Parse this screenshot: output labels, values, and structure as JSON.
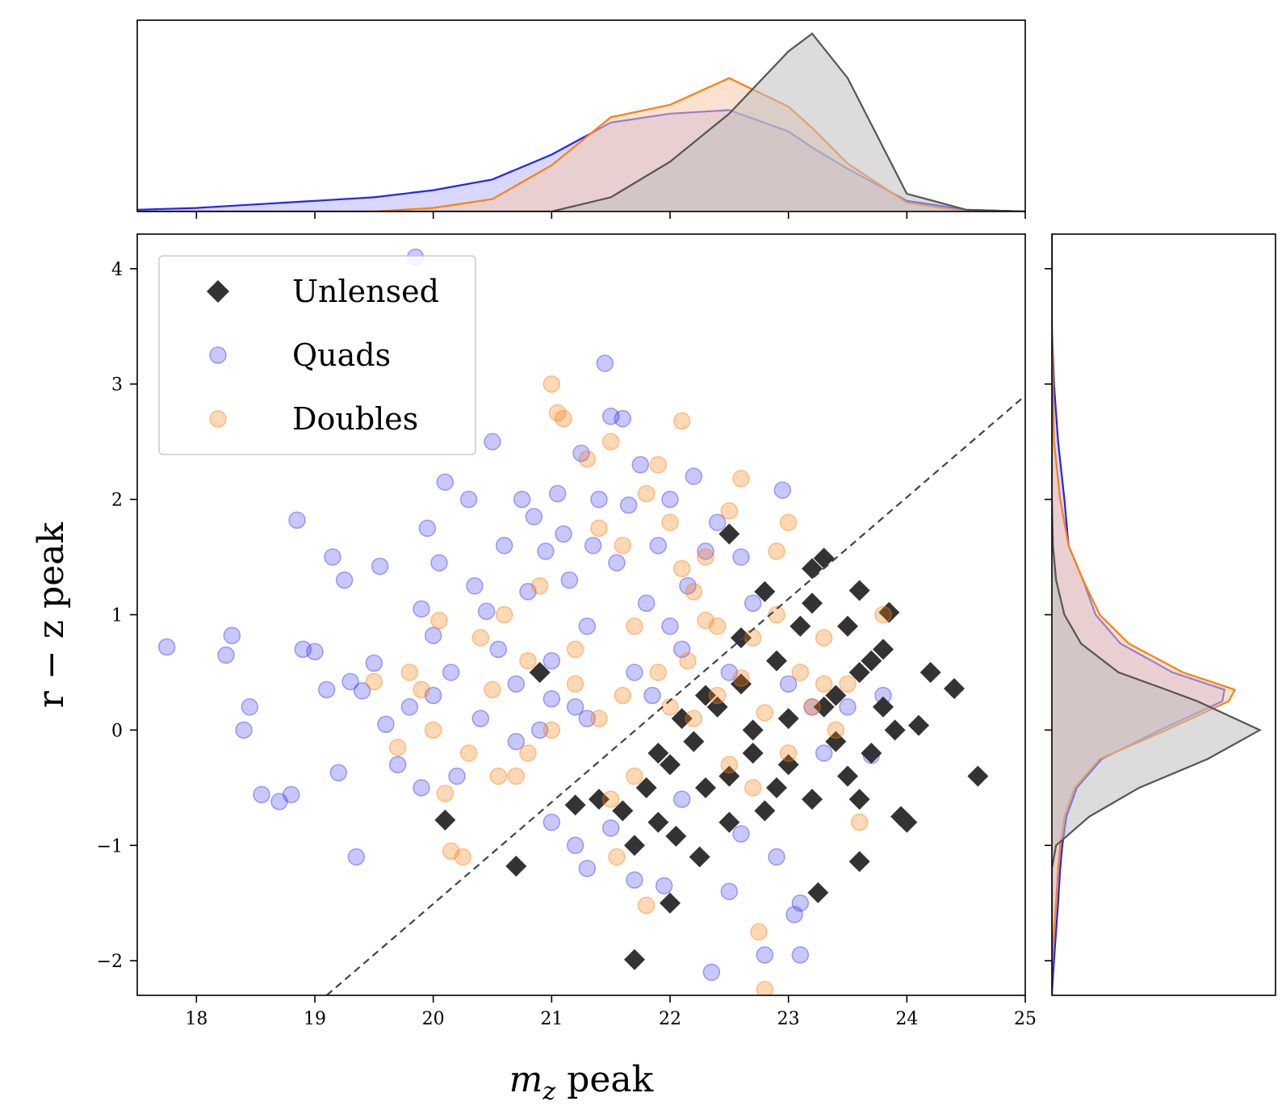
{
  "chart_data": {
    "type": "scatter",
    "xlabel_base": "m",
    "xlabel_sub": "z",
    "xlabel_rest": " peak",
    "ylabel": "r − z peak",
    "xlim": [
      17.5,
      25
    ],
    "ylim": [
      -2.3,
      4.3
    ],
    "xticks": [
      18,
      19,
      20,
      21,
      22,
      23,
      24,
      25
    ],
    "yticks": [
      -2,
      -1,
      0,
      1,
      2,
      3,
      4
    ],
    "grid": false,
    "legend_position": "upper-left",
    "reference_line": {
      "style": "dashed",
      "color": "#444444",
      "points": [
        [
          19.1,
          -2.3
        ],
        [
          25,
          2.9
        ]
      ]
    },
    "colors": {
      "unlensed": "#333333",
      "quads": "#2222ff",
      "doubles": "#ff7f0e"
    },
    "series": [
      {
        "key": "unlensed",
        "name": "Unlensed",
        "marker": "diamond",
        "color": "#333333",
        "opacity": 1.0,
        "points": [
          [
            20.1,
            -0.78
          ],
          [
            20.7,
            -1.18
          ],
          [
            21.7,
            -1.0
          ],
          [
            21.7,
            -1.99
          ],
          [
            22.0,
            -1.5
          ],
          [
            22.05,
            -0.92
          ],
          [
            22.25,
            -1.1
          ],
          [
            23.25,
            -1.41
          ],
          [
            23.6,
            -1.14
          ],
          [
            23.95,
            -0.75
          ],
          [
            24.0,
            -0.8
          ],
          [
            24.4,
            0.36
          ],
          [
            24.6,
            -0.4
          ],
          [
            24.1,
            0.04
          ],
          [
            23.85,
            1.02
          ],
          [
            23.6,
            1.21
          ],
          [
            23.3,
            1.49
          ],
          [
            23.2,
            1.4
          ],
          [
            22.5,
            1.7
          ],
          [
            20.9,
            0.5
          ],
          [
            22.3,
            -0.5
          ],
          [
            22.7,
            -0.2
          ],
          [
            23.0,
            0.1
          ],
          [
            23.4,
            0.3
          ],
          [
            23.6,
            0.5
          ],
          [
            23.8,
            0.7
          ],
          [
            23.1,
            0.9
          ],
          [
            22.9,
            0.6
          ],
          [
            22.6,
            0.4
          ],
          [
            22.4,
            0.2
          ],
          [
            22.2,
            -0.1
          ],
          [
            22.0,
            -0.3
          ],
          [
            21.8,
            -0.5
          ],
          [
            21.6,
            -0.7
          ],
          [
            21.9,
            -0.8
          ],
          [
            22.5,
            -0.8
          ],
          [
            22.8,
            -0.7
          ],
          [
            23.2,
            -0.6
          ],
          [
            23.5,
            -0.4
          ],
          [
            23.7,
            -0.2
          ],
          [
            23.9,
            0.0
          ],
          [
            23.3,
            0.2
          ],
          [
            23.0,
            -0.3
          ],
          [
            22.7,
            0.0
          ],
          [
            22.9,
            -0.5
          ],
          [
            23.6,
            -0.6
          ],
          [
            23.8,
            0.2
          ],
          [
            23.5,
            0.9
          ],
          [
            23.2,
            1.1
          ],
          [
            22.8,
            1.2
          ],
          [
            22.6,
            0.8
          ],
          [
            22.3,
            0.3
          ],
          [
            22.1,
            0.1
          ],
          [
            21.9,
            -0.2
          ],
          [
            21.4,
            -0.6
          ],
          [
            21.2,
            -0.65
          ],
          [
            23.4,
            -0.1
          ],
          [
            23.7,
            0.6
          ],
          [
            22.5,
            -0.4
          ],
          [
            24.2,
            0.5
          ]
        ]
      },
      {
        "key": "quads",
        "name": "Quads",
        "marker": "circle",
        "color": "#2222ff",
        "opacity": 0.25,
        "points": [
          [
            17.75,
            0.72
          ],
          [
            18.25,
            0.65
          ],
          [
            18.3,
            0.82
          ],
          [
            18.4,
            0.0
          ],
          [
            18.45,
            0.2
          ],
          [
            18.55,
            -0.56
          ],
          [
            18.7,
            -0.62
          ],
          [
            18.8,
            -0.56
          ],
          [
            18.85,
            1.82
          ],
          [
            18.9,
            0.7
          ],
          [
            19.0,
            0.68
          ],
          [
            19.1,
            0.35
          ],
          [
            19.15,
            1.5
          ],
          [
            19.2,
            -0.37
          ],
          [
            19.25,
            1.3
          ],
          [
            19.3,
            0.42
          ],
          [
            19.35,
            -1.1
          ],
          [
            19.4,
            0.34
          ],
          [
            19.5,
            0.58
          ],
          [
            19.55,
            1.42
          ],
          [
            19.6,
            0.05
          ],
          [
            19.7,
            -0.3
          ],
          [
            19.8,
            0.2
          ],
          [
            19.85,
            4.1
          ],
          [
            19.9,
            1.05
          ],
          [
            19.95,
            1.75
          ],
          [
            20.0,
            0.82
          ],
          [
            20.05,
            1.45
          ],
          [
            20.1,
            2.15
          ],
          [
            20.15,
            0.5
          ],
          [
            20.2,
            -0.4
          ],
          [
            20.3,
            2.0
          ],
          [
            20.35,
            1.25
          ],
          [
            20.4,
            0.1
          ],
          [
            20.45,
            1.03
          ],
          [
            20.5,
            2.5
          ],
          [
            20.55,
            0.7
          ],
          [
            20.6,
            1.6
          ],
          [
            20.7,
            0.4
          ],
          [
            20.75,
            2.0
          ],
          [
            20.8,
            1.2
          ],
          [
            20.85,
            1.85
          ],
          [
            20.9,
            0.0
          ],
          [
            20.95,
            1.55
          ],
          [
            21.0,
            0.6
          ],
          [
            21.05,
            2.05
          ],
          [
            21.1,
            1.7
          ],
          [
            21.15,
            1.3
          ],
          [
            21.2,
            0.2
          ],
          [
            21.25,
            2.4
          ],
          [
            21.3,
            0.9
          ],
          [
            21.35,
            1.6
          ],
          [
            21.4,
            2.0
          ],
          [
            21.45,
            3.18
          ],
          [
            21.5,
            2.72
          ],
          [
            21.55,
            1.45
          ],
          [
            21.6,
            2.7
          ],
          [
            21.65,
            1.95
          ],
          [
            21.7,
            0.5
          ],
          [
            21.75,
            2.3
          ],
          [
            21.8,
            1.1
          ],
          [
            21.85,
            0.3
          ],
          [
            21.9,
            1.6
          ],
          [
            21.95,
            -1.35
          ],
          [
            22.0,
            2.0
          ],
          [
            22.1,
            0.7
          ],
          [
            22.15,
            1.25
          ],
          [
            22.2,
            2.2
          ],
          [
            22.3,
            1.55
          ],
          [
            22.35,
            -2.1
          ],
          [
            22.4,
            1.8
          ],
          [
            22.5,
            0.5
          ],
          [
            22.6,
            1.5
          ],
          [
            22.7,
            1.1
          ],
          [
            22.8,
            -1.95
          ],
          [
            22.9,
            -1.1
          ],
          [
            22.95,
            2.08
          ],
          [
            23.0,
            0.4
          ],
          [
            23.05,
            -1.6
          ],
          [
            23.1,
            -1.5
          ],
          [
            23.1,
            -1.95
          ],
          [
            23.2,
            0.2
          ],
          [
            23.3,
            -0.2
          ],
          [
            23.5,
            0.2
          ],
          [
            23.7,
            -0.22
          ],
          [
            23.8,
            0.3
          ],
          [
            21.0,
            -0.8
          ],
          [
            21.5,
            -0.85
          ],
          [
            21.7,
            -1.3
          ],
          [
            22.1,
            -0.6
          ],
          [
            22.6,
            -0.9
          ],
          [
            21.0,
            0.27
          ],
          [
            21.3,
            0.1
          ],
          [
            20.7,
            -0.1
          ],
          [
            20.0,
            0.3
          ],
          [
            19.9,
            -0.5
          ],
          [
            22.0,
            0.9
          ],
          [
            21.2,
            -1.0
          ],
          [
            21.3,
            -1.2
          ],
          [
            22.5,
            -1.4
          ]
        ]
      },
      {
        "key": "doubles",
        "name": "Doubles",
        "marker": "circle",
        "color": "#ff7f0e",
        "opacity": 0.3,
        "points": [
          [
            19.5,
            0.42
          ],
          [
            19.7,
            -0.15
          ],
          [
            19.8,
            0.5
          ],
          [
            19.9,
            0.35
          ],
          [
            20.0,
            0.0
          ],
          [
            20.05,
            0.95
          ],
          [
            20.1,
            -0.55
          ],
          [
            20.15,
            -1.05
          ],
          [
            20.25,
            -1.1
          ],
          [
            20.3,
            -0.2
          ],
          [
            20.4,
            0.8
          ],
          [
            20.5,
            0.35
          ],
          [
            20.55,
            -0.4
          ],
          [
            20.6,
            1.0
          ],
          [
            20.7,
            -0.4
          ],
          [
            20.8,
            0.6
          ],
          [
            20.9,
            1.25
          ],
          [
            21.0,
            3.0
          ],
          [
            21.05,
            2.75
          ],
          [
            21.1,
            2.7
          ],
          [
            21.2,
            0.4
          ],
          [
            21.3,
            2.35
          ],
          [
            21.4,
            1.75
          ],
          [
            21.5,
            2.5
          ],
          [
            21.55,
            -1.1
          ],
          [
            21.6,
            1.6
          ],
          [
            21.7,
            0.9
          ],
          [
            21.8,
            2.05
          ],
          [
            21.9,
            2.3
          ],
          [
            22.0,
            1.8
          ],
          [
            22.1,
            2.68
          ],
          [
            22.15,
            0.6
          ],
          [
            22.2,
            1.2
          ],
          [
            22.3,
            1.5
          ],
          [
            22.4,
            0.3
          ],
          [
            22.5,
            1.9
          ],
          [
            22.6,
            2.18
          ],
          [
            22.7,
            0.8
          ],
          [
            22.75,
            -1.75
          ],
          [
            22.8,
            -2.25
          ],
          [
            22.9,
            1.0
          ],
          [
            23.0,
            1.8
          ],
          [
            23.1,
            0.5
          ],
          [
            23.2,
            0.2
          ],
          [
            23.3,
            0.8
          ],
          [
            23.4,
            0.0
          ],
          [
            23.5,
            0.4
          ],
          [
            23.6,
            -0.8
          ],
          [
            21.8,
            -1.52
          ],
          [
            22.0,
            0.2
          ],
          [
            21.9,
            0.5
          ],
          [
            22.2,
            0.1
          ],
          [
            22.4,
            0.9
          ],
          [
            22.6,
            0.45
          ],
          [
            22.8,
            0.15
          ],
          [
            21.6,
            0.3
          ],
          [
            21.4,
            0.1
          ],
          [
            21.2,
            0.7
          ],
          [
            21.0,
            0.0
          ],
          [
            22.5,
            -0.3
          ],
          [
            22.7,
            -0.5
          ],
          [
            23.0,
            -0.2
          ],
          [
            21.7,
            -0.4
          ],
          [
            21.5,
            -0.6
          ],
          [
            22.1,
            1.4
          ],
          [
            22.3,
            0.95
          ],
          [
            22.9,
            1.55
          ],
          [
            23.3,
            0.4
          ],
          [
            20.8,
            -0.2
          ],
          [
            23.8,
            1.0
          ]
        ]
      }
    ],
    "marginal_top": {
      "x": [
        17.5,
        18.0,
        18.5,
        19.0,
        19.5,
        20.0,
        20.5,
        21.0,
        21.5,
        22.0,
        22.5,
        23.0,
        23.2,
        23.5,
        24.0,
        24.5,
        25.0
      ],
      "series": [
        {
          "key": "quads",
          "color": "#2222ff",
          "fill": "#b8b8ff",
          "density": [
            0.01,
            0.02,
            0.04,
            0.06,
            0.08,
            0.12,
            0.18,
            0.32,
            0.5,
            0.55,
            0.57,
            0.45,
            0.36,
            0.24,
            0.06,
            0.01,
            0.0
          ]
        },
        {
          "key": "doubles",
          "color": "#ff7f0e",
          "fill": "#f7c9a8",
          "density": [
            0.0,
            0.0,
            0.0,
            0.0,
            0.0,
            0.02,
            0.07,
            0.26,
            0.53,
            0.6,
            0.75,
            0.59,
            0.47,
            0.27,
            0.05,
            0.0,
            0.0
          ]
        },
        {
          "key": "unlensed",
          "color": "#555555",
          "fill": "#bfbfbf",
          "density": [
            0.0,
            0.0,
            0.0,
            0.0,
            0.0,
            0.0,
            0.0,
            0.0,
            0.08,
            0.28,
            0.55,
            0.9,
            1.0,
            0.75,
            0.1,
            0.01,
            0.0
          ]
        }
      ]
    },
    "marginal_right": {
      "y": [
        -2.3,
        -2.0,
        -1.5,
        -1.2,
        -1.0,
        -0.75,
        -0.5,
        -0.25,
        0.0,
        0.25,
        0.35,
        0.5,
        0.75,
        1.0,
        1.3,
        1.6,
        2.0,
        2.5,
        3.0,
        3.5,
        4.3
      ],
      "series": [
        {
          "key": "quads",
          "color": "#2222ff",
          "fill": "#b8b8ff",
          "density": [
            0.0,
            0.01,
            0.03,
            0.04,
            0.05,
            0.07,
            0.12,
            0.24,
            0.52,
            0.82,
            0.83,
            0.58,
            0.33,
            0.21,
            0.15,
            0.08,
            0.06,
            0.03,
            0.01,
            0.0,
            0.0
          ]
        },
        {
          "key": "doubles",
          "color": "#ff7f0e",
          "fill": "#f7c9a8",
          "density": [
            0.0,
            0.0,
            0.02,
            0.03,
            0.04,
            0.06,
            0.11,
            0.23,
            0.55,
            0.85,
            0.88,
            0.63,
            0.37,
            0.23,
            0.15,
            0.08,
            0.04,
            0.01,
            0.005,
            0.0,
            0.0
          ]
        },
        {
          "key": "unlensed",
          "color": "#555555",
          "fill": "#bfbfbf",
          "density": [
            0.0,
            0.0,
            0.0,
            0.0,
            0.02,
            0.18,
            0.42,
            0.75,
            1.0,
            0.7,
            0.55,
            0.32,
            0.14,
            0.06,
            0.02,
            0.005,
            0.0,
            0.0,
            0.0,
            0.0,
            0.0
          ]
        }
      ]
    }
  }
}
